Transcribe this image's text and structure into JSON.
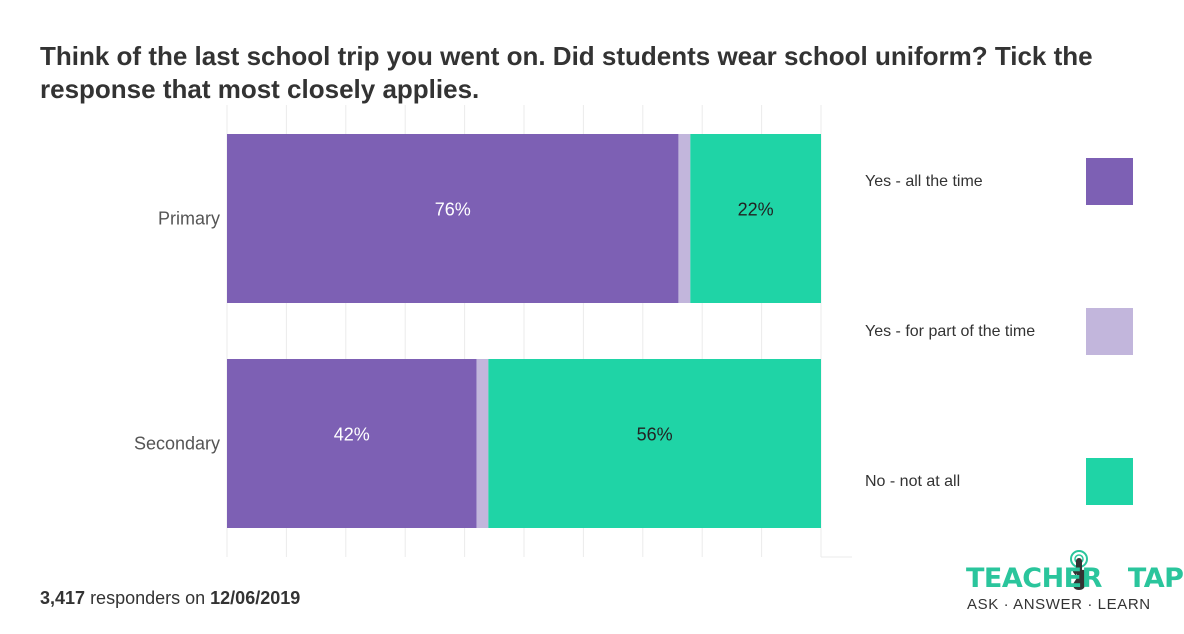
{
  "title": "Think of the last school trip you went on. Did students wear school uniform? Tick the response that most closely applies.",
  "footer": {
    "count": "3,417",
    "text": "responders on",
    "date": "12/06/2019"
  },
  "logo": {
    "word1": "TEACHER",
    "word2": "TAPP",
    "tagline": "ASK · ANSWER · LEARN"
  },
  "colors": {
    "yes_all": "#7d60b4",
    "yes_part": "#c2b6dc",
    "no": "#1fd4a6",
    "grid": "#ebebeb",
    "brand": "#2ac59c"
  },
  "chart_data": {
    "type": "bar",
    "orientation": "horizontal",
    "stacked": true,
    "categories": [
      "Primary",
      "Secondary"
    ],
    "xlim": [
      0,
      100
    ],
    "grid": true,
    "legend_position": "right",
    "series": [
      {
        "name": "Yes - all the time",
        "values": [
          76,
          42
        ],
        "labels": [
          "76%",
          "42%"
        ],
        "color": "#7d60b4",
        "label_color": "#ffffff"
      },
      {
        "name": "Yes - for part of the time",
        "values": [
          2,
          2
        ],
        "labels": [
          "",
          ""
        ],
        "color": "#c2b6dc",
        "label_color": "#333333"
      },
      {
        "name": "No - not at all",
        "values": [
          22,
          56
        ],
        "labels": [
          "22%",
          "56%"
        ],
        "color": "#1fd4a6",
        "label_color": "#222222"
      }
    ]
  }
}
